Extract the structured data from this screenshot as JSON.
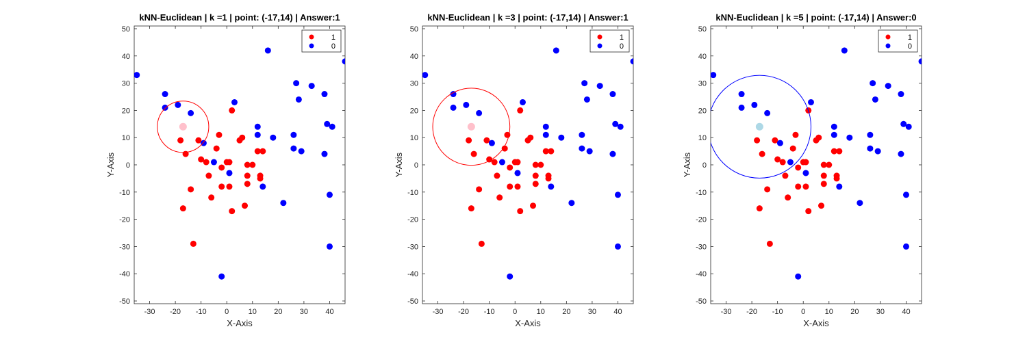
{
  "chart_data": [
    {
      "type": "scatter",
      "title": "kNN-Euclidean | k =1 | point: (-17,14) | Answer:1",
      "xlabel": "X-Axis",
      "ylabel": "Y-Axis",
      "k": 1,
      "query_point": [
        -17,
        14
      ],
      "answer": 1,
      "query_color": "#ffc0cb",
      "circle_radius": 10,
      "circle_color": "#ff0000",
      "xlim": [
        -36,
        46
      ],
      "ylim": [
        -51,
        51
      ],
      "xticks": [
        "-30",
        "-20",
        "-10",
        "0",
        "10",
        "20",
        "30",
        "40"
      ],
      "yticks": [
        "-50",
        "-40",
        "-30",
        "-20",
        "-10",
        "0",
        "10",
        "20",
        "30",
        "40",
        "50"
      ],
      "legend": {
        "location": "top-right",
        "entries": [
          "1",
          "0"
        ]
      }
    },
    {
      "type": "scatter",
      "title": "kNN-Euclidean | k =3 | point: (-17,14) | Answer:1",
      "xlabel": "X-Axis",
      "ylabel": "Y-Axis",
      "k": 3,
      "query_point": [
        -17,
        14
      ],
      "answer": 1,
      "query_color": "#ffc0cb",
      "circle_radius": 15,
      "circle_color": "#ff0000",
      "xlim": [
        -36,
        46
      ],
      "ylim": [
        -51,
        51
      ],
      "xticks": [
        "-30",
        "-20",
        "-10",
        "0",
        "10",
        "20",
        "30",
        "40"
      ],
      "yticks": [
        "-50",
        "-40",
        "-30",
        "-20",
        "-10",
        "0",
        "10",
        "20",
        "30",
        "40",
        "50"
      ],
      "legend": {
        "location": "top-right",
        "entries": [
          "1",
          "0"
        ]
      }
    },
    {
      "type": "scatter",
      "title": "kNN-Euclidean | k =5 | point: (-17,14) | Answer:0",
      "xlabel": "X-Axis",
      "ylabel": "Y-Axis",
      "k": 5,
      "query_point": [
        -17,
        14
      ],
      "answer": 0,
      "query_color": "#add8e6",
      "circle_radius": 20,
      "circle_color": "#0000ff",
      "xlim": [
        -36,
        46
      ],
      "ylim": [
        -51,
        51
      ],
      "xticks": [
        "-30",
        "-20",
        "-10",
        "0",
        "10",
        "20",
        "30",
        "40"
      ],
      "yticks": [
        "-50",
        "-40",
        "-30",
        "-20",
        "-10",
        "0",
        "10",
        "20",
        "30",
        "40",
        "50"
      ],
      "legend": {
        "location": "top-right",
        "entries": [
          "1",
          "0"
        ]
      }
    }
  ],
  "points": {
    "class_1": {
      "label": "1",
      "color": "#ff0000",
      "x": [
        -18,
        -16,
        -11,
        -10,
        -8,
        -7,
        -6,
        -4,
        -3,
        -2,
        -2,
        0,
        1,
        1,
        2,
        2,
        5,
        6,
        7,
        8,
        8,
        8,
        10,
        12,
        13,
        13,
        14,
        -14,
        -17,
        -13
      ],
      "y": [
        9,
        4,
        9,
        2,
        1,
        -4,
        -12,
        6,
        11,
        -1,
        -8,
        1,
        1,
        -8,
        20,
        -17,
        9,
        10,
        -15,
        0,
        -4,
        -7,
        0,
        5,
        -4,
        -5,
        5,
        -9,
        -16,
        -29
      ]
    },
    "class_0": {
      "label": "0",
      "color": "#0000ff",
      "x": [
        -35,
        -24,
        -24,
        -19,
        -14,
        -9,
        -5,
        1,
        3,
        12,
        12,
        14,
        16,
        18,
        22,
        26,
        26,
        27,
        28,
        29,
        33,
        38,
        38,
        39,
        40,
        40,
        41,
        46,
        -2
      ],
      "y": [
        33,
        26,
        21,
        22,
        19,
        8,
        1,
        -3,
        23,
        14,
        11,
        -8,
        42,
        10,
        -14,
        11,
        6,
        30,
        24,
        5,
        29,
        26,
        4,
        15,
        -11,
        -30,
        14,
        38,
        -41
      ]
    }
  }
}
